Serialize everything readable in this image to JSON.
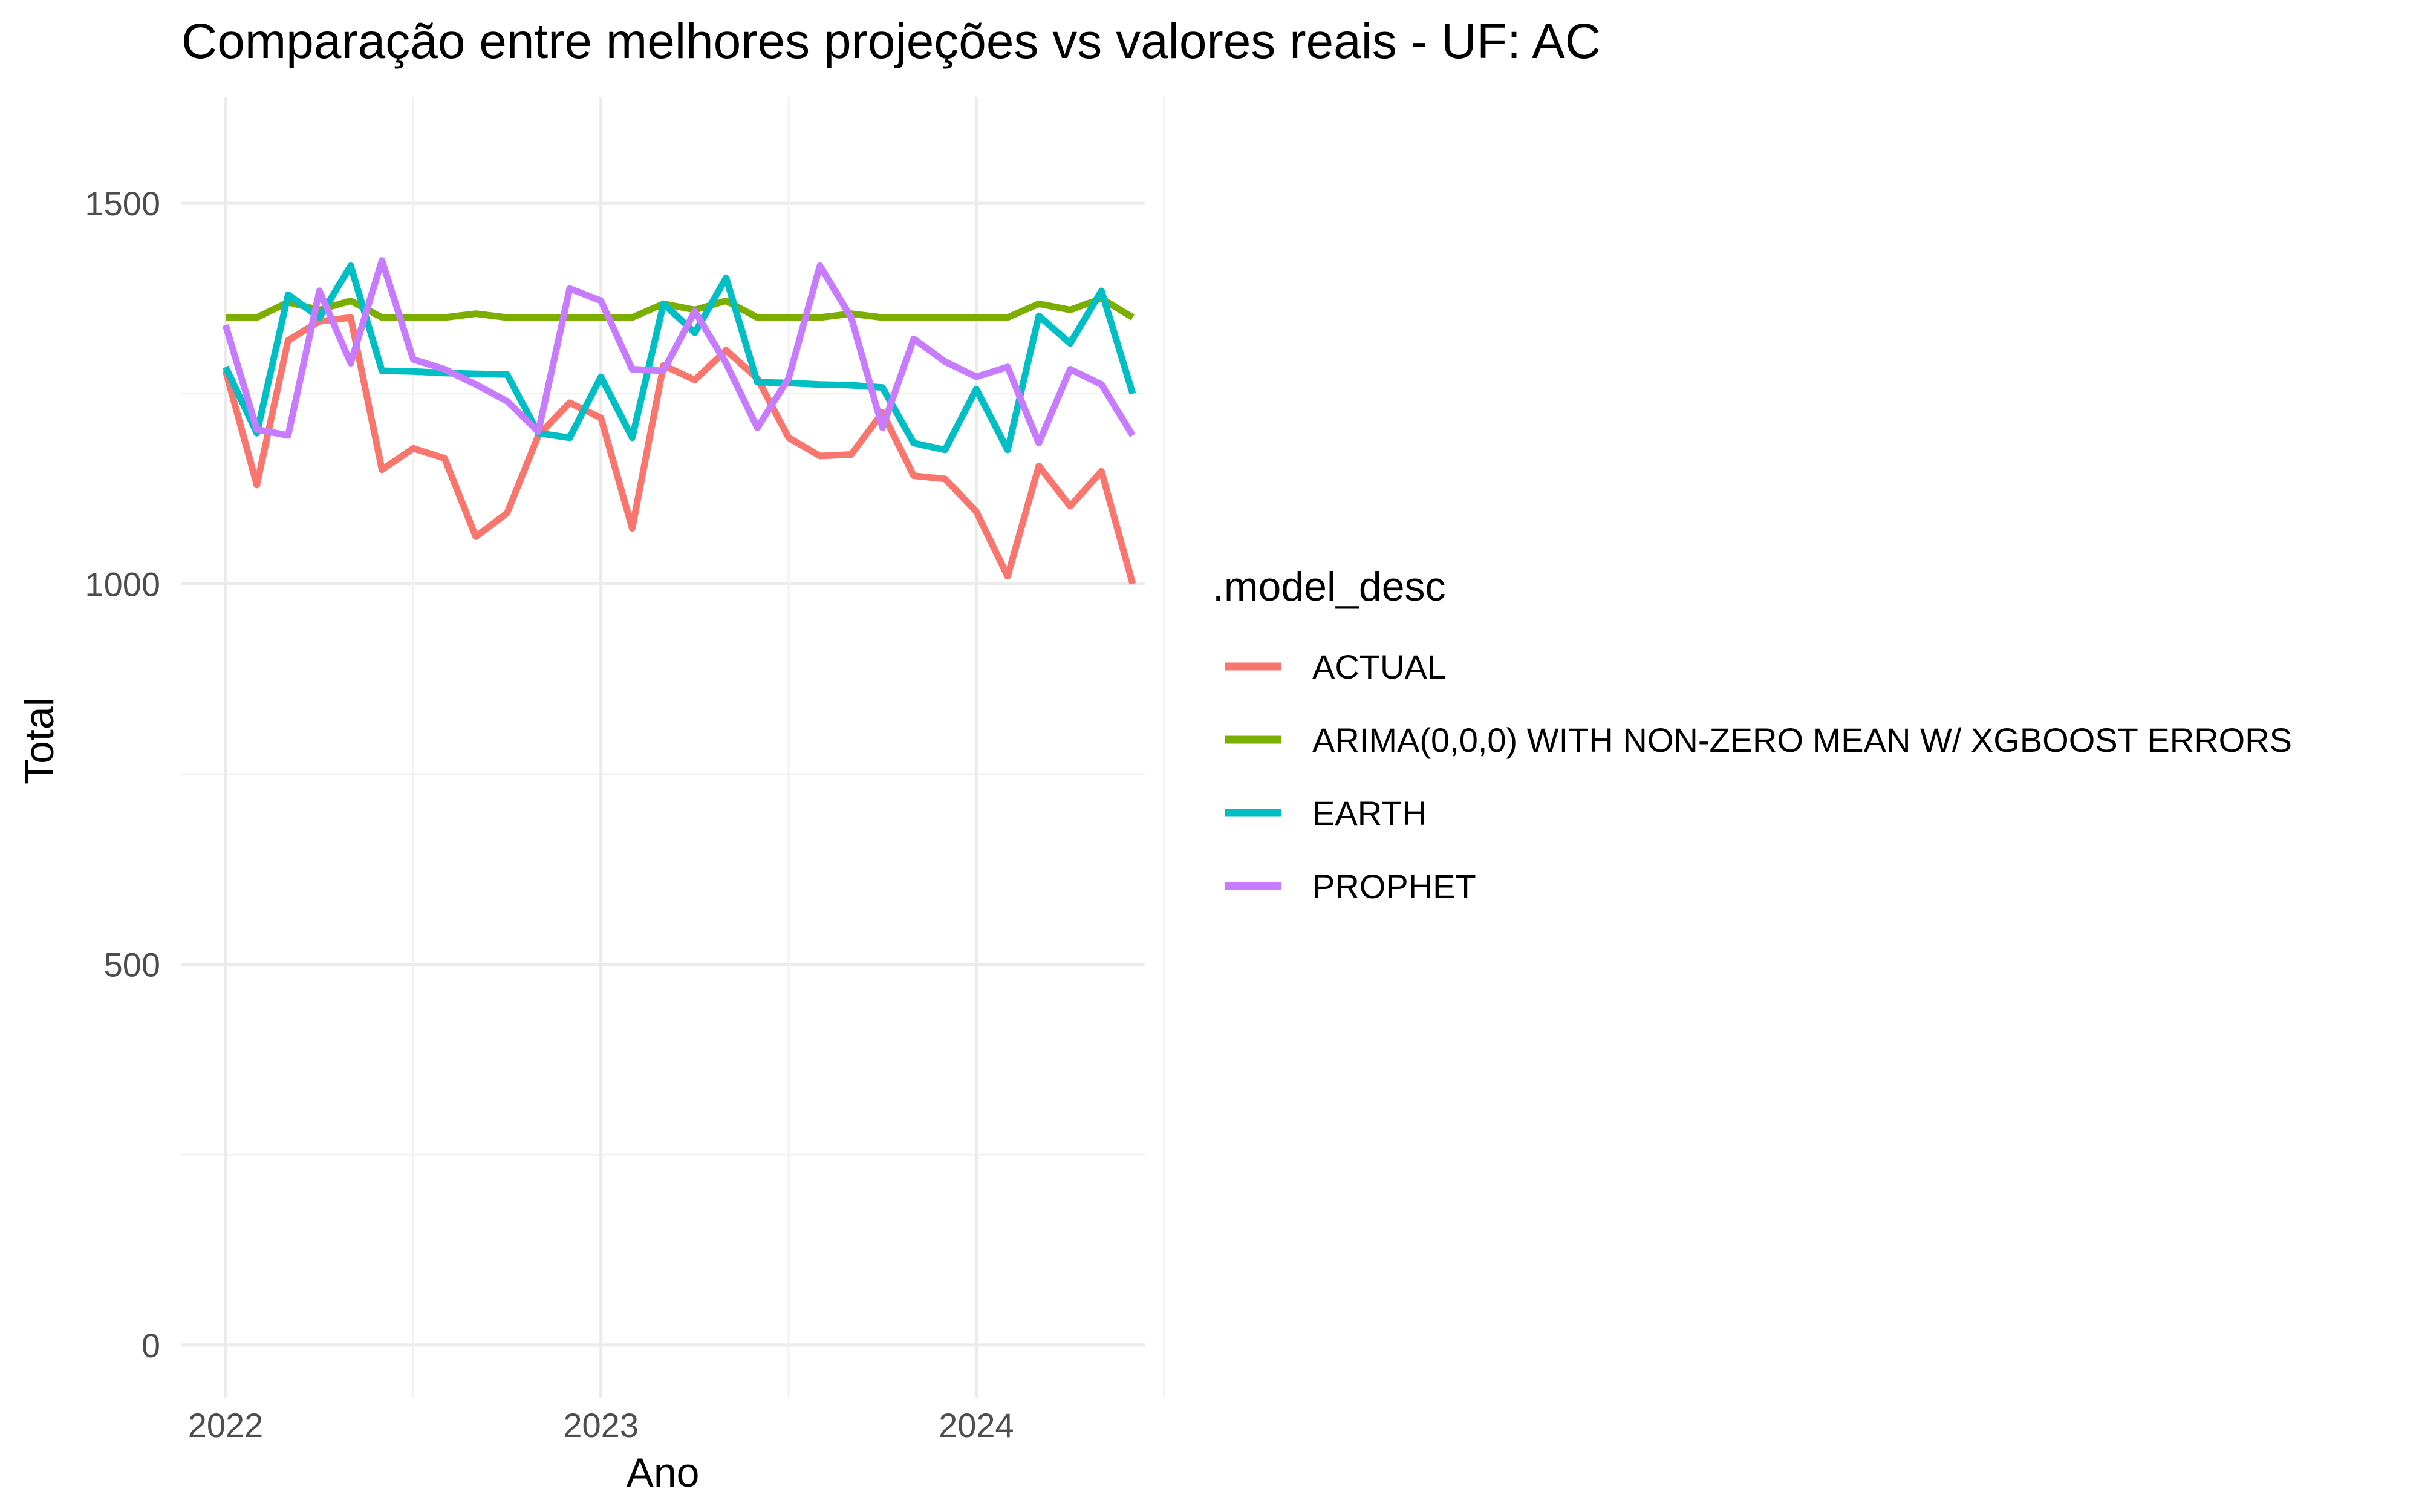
{
  "chart_data": {
    "type": "line",
    "title": "Comparação entre melhores projeções vs valores reais - UF: AC",
    "xlabel": "Ano",
    "ylabel": "Total",
    "x_ticks": [
      "2022",
      "2023",
      "2024"
    ],
    "y_ticks": [
      "0",
      "500",
      "1000",
      "1500"
    ],
    "ylim": [
      -70,
      1640
    ],
    "grid": true,
    "legend": {
      "title": ".model_desc",
      "position": "right"
    },
    "x": [
      "2022-01",
      "2022-02",
      "2022-03",
      "2022-04",
      "2022-05",
      "2022-06",
      "2022-07",
      "2022-08",
      "2022-09",
      "2022-10",
      "2022-11",
      "2022-12",
      "2023-01",
      "2023-02",
      "2023-03",
      "2023-04",
      "2023-05",
      "2023-06",
      "2023-07",
      "2023-08",
      "2023-09",
      "2023-10",
      "2023-11",
      "2023-12",
      "2024-01",
      "2024-02",
      "2024-03",
      "2024-04",
      "2024-05",
      "2024-06"
    ],
    "series": [
      {
        "name": "ACTUAL",
        "color": "#F8766D",
        "values": [
          1280,
          1130,
          1320,
          1345,
          1350,
          1150,
          1178,
          1165,
          1062,
          1093,
          1195,
          1238,
          1218,
          1073,
          1287,
          1268,
          1307,
          1270,
          1192,
          1168,
          1170,
          1225,
          1142,
          1138,
          1095,
          1010,
          1155,
          1102,
          1148,
          1000
        ]
      },
      {
        "name": "ARIMA(0,0,0) WITH NON-ZERO MEAN W/ XGBOOST ERRORS",
        "color": "#7CAE00",
        "values": [
          1350,
          1350,
          1370,
          1360,
          1372,
          1350,
          1350,
          1350,
          1355,
          1350,
          1350,
          1350,
          1350,
          1350,
          1368,
          1360,
          1372,
          1350,
          1350,
          1350,
          1355,
          1350,
          1350,
          1350,
          1350,
          1350,
          1368,
          1360,
          1375,
          1350
        ]
      },
      {
        "name": "EARTH",
        "color": "#00BFC4",
        "values": [
          1285,
          1198,
          1380,
          1350,
          1418,
          1280,
          1279,
          1277,
          1276,
          1275,
          1198,
          1192,
          1272,
          1192,
          1368,
          1330,
          1402,
          1265,
          1264,
          1262,
          1261,
          1258,
          1185,
          1176,
          1256,
          1176,
          1352,
          1316,
          1385,
          1250
        ]
      },
      {
        "name": "PROPHET",
        "color": "#C77CFF",
        "values": [
          1340,
          1203,
          1195,
          1385,
          1290,
          1425,
          1295,
          1282,
          1262,
          1240,
          1200,
          1388,
          1372,
          1282,
          1280,
          1358,
          1290,
          1205,
          1270,
          1418,
          1350,
          1205,
          1322,
          1292,
          1272,
          1285,
          1185,
          1282,
          1262,
          1195
        ]
      }
    ]
  }
}
